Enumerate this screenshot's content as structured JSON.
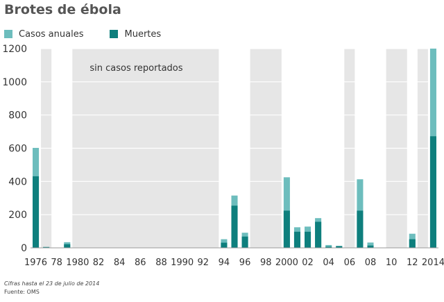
{
  "chart_data": {
    "type": "bar",
    "title": "Brotes de ébola",
    "annotation": "sin casos reportados",
    "ylim": [
      0,
      1200
    ],
    "yticks": [
      0,
      200,
      400,
      600,
      800,
      1000,
      1200
    ],
    "legend": {
      "placement": "top-left"
    },
    "colors": {
      "cases": "#6dbdbd",
      "deaths": "#0e7f7d",
      "shade": "#e6e6e6",
      "grid": "#ffffff"
    },
    "x_tick_labels": [
      {
        "year": 1976,
        "label": "1976"
      },
      {
        "year": 1978,
        "label": "78"
      },
      {
        "year": 1980,
        "label": "1980"
      },
      {
        "year": 1982,
        "label": "82"
      },
      {
        "year": 1984,
        "label": "84"
      },
      {
        "year": 1986,
        "label": "86"
      },
      {
        "year": 1988,
        "label": "88"
      },
      {
        "year": 1990,
        "label": "1990"
      },
      {
        "year": 1992,
        "label": "92"
      },
      {
        "year": 1994,
        "label": "94"
      },
      {
        "year": 1996,
        "label": "96"
      },
      {
        "year": 1998,
        "label": "98"
      },
      {
        "year": 2000,
        "label": "2000"
      },
      {
        "year": 2002,
        "label": "02"
      },
      {
        "year": 2004,
        "label": "04"
      },
      {
        "year": 2006,
        "label": "06"
      },
      {
        "year": 2008,
        "label": "08"
      },
      {
        "year": 2010,
        "label": "10"
      },
      {
        "year": 2012,
        "label": "12"
      },
      {
        "year": 2014,
        "label": "2014"
      }
    ],
    "no_cases_periods": [
      [
        1977,
        1977
      ],
      [
        1980,
        1993
      ],
      [
        1997,
        1999
      ],
      [
        2006,
        2006
      ],
      [
        2010,
        2011
      ],
      [
        2013,
        2013
      ]
    ],
    "series": [
      {
        "name": "Casos anuales",
        "key": "cases",
        "x": [
          1976,
          1977,
          1979,
          1994,
          1995,
          1996,
          2000,
          2001,
          2002,
          2003,
          2004,
          2005,
          2007,
          2008,
          2011,
          2012,
          2014
        ],
        "values": [
          602,
          5,
          34,
          52,
          315,
          91,
          425,
          124,
          128,
          179,
          17,
          12,
          413,
          32,
          1,
          85,
          1200
        ]
      },
      {
        "name": "Muertes",
        "key": "deaths",
        "x": [
          1976,
          1977,
          1979,
          1994,
          1995,
          1996,
          2000,
          2001,
          2002,
          2003,
          2004,
          2005,
          2007,
          2008,
          2011,
          2012,
          2014
        ],
        "values": [
          431,
          5,
          22,
          31,
          254,
          68,
          224,
          97,
          97,
          157,
          7,
          10,
          224,
          14,
          1,
          52,
          672
        ]
      }
    ]
  },
  "footer": {
    "note": "Cifras hasta el 23 de julio de 2014",
    "source": "Fuente: OMS"
  }
}
